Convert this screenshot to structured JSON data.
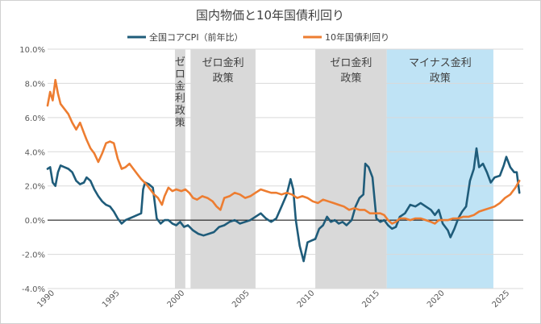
{
  "chart_data": {
    "type": "line",
    "title": "国内物価と10年国債利回り",
    "xlabel": "",
    "ylabel": "",
    "xlim": [
      1990,
      2026.6
    ],
    "ylim": [
      -4,
      10
    ],
    "y_ticks": [
      -4,
      -2,
      0,
      2,
      4,
      6,
      8,
      10
    ],
    "y_tick_labels": [
      "-4.0%",
      "-2.0%",
      "0.0%",
      "2.0%",
      "4.0%",
      "6.0%",
      "8.0%",
      "10.0%"
    ],
    "x_ticks": [
      1990,
      1995,
      2000,
      2005,
      2010,
      2015,
      2020,
      2025
    ],
    "x_tick_labels": [
      "1990",
      "1995",
      "2000",
      "2005",
      "2010",
      "2015",
      "2020",
      "2025"
    ],
    "grid": "horizontal",
    "legend_position": "top",
    "shaded_periods": [
      {
        "label": "ゼロ金利政策",
        "start": 1999.8,
        "end": 2000.6,
        "color": "#d9d9d9",
        "vertical": true
      },
      {
        "label_lines": [
          "ゼロ金利",
          "政策"
        ],
        "start": 2001.0,
        "end": 2006.0,
        "color": "#d9d9d9"
      },
      {
        "label_lines": [
          "ゼロ金利",
          "政策"
        ],
        "start": 2010.6,
        "end": 2016.1,
        "color": "#d9d9d9"
      },
      {
        "label_lines": [
          "マイナス金利",
          "政策"
        ],
        "start": 2016.1,
        "end": 2024.3,
        "color": "#bfe3f5"
      }
    ],
    "series": [
      {
        "name": "全国コアCPI（前年比）",
        "color": "#1f5c7a",
        "points": [
          [
            1990.0,
            3.0
          ],
          [
            1990.2,
            3.1
          ],
          [
            1990.4,
            2.2
          ],
          [
            1990.6,
            2.0
          ],
          [
            1990.8,
            2.8
          ],
          [
            1991.0,
            3.2
          ],
          [
            1991.3,
            3.1
          ],
          [
            1991.6,
            3.0
          ],
          [
            1991.9,
            2.8
          ],
          [
            1992.2,
            2.3
          ],
          [
            1992.5,
            2.1
          ],
          [
            1992.8,
            2.2
          ],
          [
            1993.0,
            2.5
          ],
          [
            1993.3,
            2.3
          ],
          [
            1993.6,
            1.8
          ],
          [
            1993.9,
            1.4
          ],
          [
            1994.2,
            1.1
          ],
          [
            1994.5,
            0.9
          ],
          [
            1994.8,
            0.8
          ],
          [
            1995.1,
            0.5
          ],
          [
            1995.4,
            0.1
          ],
          [
            1995.7,
            -0.2
          ],
          [
            1996.0,
            0.0
          ],
          [
            1996.3,
            0.1
          ],
          [
            1996.6,
            0.2
          ],
          [
            1996.9,
            0.3
          ],
          [
            1997.2,
            0.4
          ],
          [
            1997.35,
            1.8
          ],
          [
            1997.5,
            2.2
          ],
          [
            1997.8,
            2.1
          ],
          [
            1998.1,
            1.9
          ],
          [
            1998.4,
            0.1
          ],
          [
            1998.7,
            -0.2
          ],
          [
            1999.0,
            0.0
          ],
          [
            1999.3,
            0.0
          ],
          [
            1999.6,
            -0.2
          ],
          [
            1999.9,
            -0.3
          ],
          [
            2000.2,
            -0.1
          ],
          [
            2000.5,
            -0.4
          ],
          [
            2000.8,
            -0.3
          ],
          [
            2001.2,
            -0.6
          ],
          [
            2001.6,
            -0.8
          ],
          [
            2002.0,
            -0.9
          ],
          [
            2002.4,
            -0.8
          ],
          [
            2002.8,
            -0.7
          ],
          [
            2003.2,
            -0.4
          ],
          [
            2003.6,
            -0.3
          ],
          [
            2004.0,
            -0.1
          ],
          [
            2004.4,
            0.0
          ],
          [
            2004.8,
            -0.2
          ],
          [
            2005.2,
            -0.1
          ],
          [
            2005.6,
            0.0
          ],
          [
            2006.0,
            0.2
          ],
          [
            2006.4,
            0.4
          ],
          [
            2006.8,
            0.1
          ],
          [
            2007.2,
            -0.1
          ],
          [
            2007.6,
            0.1
          ],
          [
            2008.0,
            0.8
          ],
          [
            2008.4,
            1.5
          ],
          [
            2008.7,
            2.4
          ],
          [
            2008.9,
            1.8
          ],
          [
            2009.1,
            0.0
          ],
          [
            2009.4,
            -1.5
          ],
          [
            2009.7,
            -2.4
          ],
          [
            2010.0,
            -1.3
          ],
          [
            2010.3,
            -1.2
          ],
          [
            2010.6,
            -1.1
          ],
          [
            2010.9,
            -0.5
          ],
          [
            2011.2,
            -0.3
          ],
          [
            2011.5,
            0.2
          ],
          [
            2011.8,
            -0.1
          ],
          [
            2012.1,
            0.0
          ],
          [
            2012.4,
            -0.2
          ],
          [
            2012.7,
            -0.1
          ],
          [
            2013.0,
            -0.3
          ],
          [
            2013.4,
            0.0
          ],
          [
            2013.7,
            0.8
          ],
          [
            2014.0,
            1.3
          ],
          [
            2014.3,
            1.5
          ],
          [
            2014.45,
            3.3
          ],
          [
            2014.7,
            3.1
          ],
          [
            2015.0,
            2.5
          ],
          [
            2015.3,
            0.1
          ],
          [
            2015.6,
            -0.1
          ],
          [
            2015.9,
            0.0
          ],
          [
            2016.2,
            -0.3
          ],
          [
            2016.5,
            -0.5
          ],
          [
            2016.8,
            -0.4
          ],
          [
            2017.1,
            0.2
          ],
          [
            2017.5,
            0.4
          ],
          [
            2017.9,
            0.9
          ],
          [
            2018.3,
            0.8
          ],
          [
            2018.7,
            1.0
          ],
          [
            2019.1,
            0.8
          ],
          [
            2019.5,
            0.6
          ],
          [
            2019.8,
            0.3
          ],
          [
            2020.1,
            0.6
          ],
          [
            2020.4,
            -0.2
          ],
          [
            2020.8,
            -0.6
          ],
          [
            2021.0,
            -1.0
          ],
          [
            2021.3,
            -0.5
          ],
          [
            2021.6,
            0.1
          ],
          [
            2021.9,
            0.5
          ],
          [
            2022.2,
            0.8
          ],
          [
            2022.5,
            2.3
          ],
          [
            2022.8,
            3.0
          ],
          [
            2023.0,
            4.2
          ],
          [
            2023.2,
            3.1
          ],
          [
            2023.5,
            3.3
          ],
          [
            2023.8,
            2.8
          ],
          [
            2024.1,
            2.2
          ],
          [
            2024.4,
            2.5
          ],
          [
            2024.8,
            2.6
          ],
          [
            2025.1,
            3.2
          ],
          [
            2025.3,
            3.7
          ],
          [
            2025.6,
            3.1
          ],
          [
            2025.9,
            2.8
          ],
          [
            2026.1,
            2.8
          ],
          [
            2026.3,
            1.6
          ]
        ]
      },
      {
        "name": "10年国債利回り",
        "color": "#ed7d31",
        "points": [
          [
            1990.0,
            6.7
          ],
          [
            1990.2,
            7.5
          ],
          [
            1990.4,
            7.0
          ],
          [
            1990.6,
            8.2
          ],
          [
            1990.8,
            7.4
          ],
          [
            1991.0,
            6.8
          ],
          [
            1991.3,
            6.5
          ],
          [
            1991.6,
            6.2
          ],
          [
            1991.9,
            5.7
          ],
          [
            1992.2,
            5.3
          ],
          [
            1992.5,
            5.7
          ],
          [
            1992.8,
            5.1
          ],
          [
            1993.0,
            4.7
          ],
          [
            1993.3,
            4.2
          ],
          [
            1993.6,
            3.9
          ],
          [
            1993.9,
            3.4
          ],
          [
            1994.2,
            3.9
          ],
          [
            1994.5,
            4.5
          ],
          [
            1994.8,
            4.6
          ],
          [
            1995.1,
            4.5
          ],
          [
            1995.4,
            3.6
          ],
          [
            1995.7,
            3.0
          ],
          [
            1996.0,
            3.1
          ],
          [
            1996.3,
            3.3
          ],
          [
            1996.6,
            3.0
          ],
          [
            1996.9,
            2.7
          ],
          [
            1997.2,
            2.4
          ],
          [
            1997.6,
            2.1
          ],
          [
            1997.9,
            1.8
          ],
          [
            1998.2,
            1.5
          ],
          [
            1998.5,
            1.3
          ],
          [
            1998.8,
            0.9
          ],
          [
            1999.0,
            1.4
          ],
          [
            1999.3,
            1.9
          ],
          [
            1999.6,
            1.7
          ],
          [
            1999.9,
            1.8
          ],
          [
            2000.3,
            1.7
          ],
          [
            2000.6,
            1.8
          ],
          [
            2000.9,
            1.6
          ],
          [
            2001.2,
            1.3
          ],
          [
            2001.5,
            1.2
          ],
          [
            2001.9,
            1.4
          ],
          [
            2002.3,
            1.3
          ],
          [
            2002.7,
            1.1
          ],
          [
            2003.0,
            0.8
          ],
          [
            2003.3,
            0.6
          ],
          [
            2003.6,
            1.3
          ],
          [
            2004.0,
            1.4
          ],
          [
            2004.4,
            1.6
          ],
          [
            2004.8,
            1.5
          ],
          [
            2005.2,
            1.3
          ],
          [
            2005.6,
            1.4
          ],
          [
            2006.0,
            1.6
          ],
          [
            2006.4,
            1.8
          ],
          [
            2006.8,
            1.7
          ],
          [
            2007.2,
            1.6
          ],
          [
            2007.6,
            1.6
          ],
          [
            2008.0,
            1.5
          ],
          [
            2008.4,
            1.6
          ],
          [
            2008.8,
            1.5
          ],
          [
            2009.2,
            1.3
          ],
          [
            2009.6,
            1.4
          ],
          [
            2010.0,
            1.3
          ],
          [
            2010.4,
            1.1
          ],
          [
            2010.8,
            1.0
          ],
          [
            2011.2,
            1.2
          ],
          [
            2011.6,
            1.1
          ],
          [
            2012.0,
            1.0
          ],
          [
            2012.4,
            0.9
          ],
          [
            2012.8,
            0.8
          ],
          [
            2013.2,
            0.6
          ],
          [
            2013.6,
            0.7
          ],
          [
            2014.0,
            0.6
          ],
          [
            2014.4,
            0.6
          ],
          [
            2014.8,
            0.4
          ],
          [
            2015.2,
            0.4
          ],
          [
            2015.6,
            0.4
          ],
          [
            2015.9,
            0.3
          ],
          [
            2016.2,
            0.0
          ],
          [
            2016.5,
            -0.2
          ],
          [
            2016.8,
            -0.1
          ],
          [
            2017.1,
            0.1
          ],
          [
            2017.5,
            0.1
          ],
          [
            2017.9,
            0.0
          ],
          [
            2018.3,
            0.1
          ],
          [
            2018.7,
            0.1
          ],
          [
            2019.1,
            0.0
          ],
          [
            2019.5,
            -0.1
          ],
          [
            2019.8,
            -0.2
          ],
          [
            2020.1,
            0.0
          ],
          [
            2020.4,
            0.0
          ],
          [
            2020.8,
            0.0
          ],
          [
            2021.2,
            0.1
          ],
          [
            2021.6,
            0.1
          ],
          [
            2022.0,
            0.2
          ],
          [
            2022.4,
            0.2
          ],
          [
            2022.8,
            0.3
          ],
          [
            2023.2,
            0.5
          ],
          [
            2023.6,
            0.6
          ],
          [
            2024.0,
            0.7
          ],
          [
            2024.4,
            0.8
          ],
          [
            2024.8,
            1.0
          ],
          [
            2025.2,
            1.3
          ],
          [
            2025.6,
            1.5
          ],
          [
            2026.0,
            1.9
          ],
          [
            2026.3,
            2.3
          ]
        ]
      }
    ]
  }
}
